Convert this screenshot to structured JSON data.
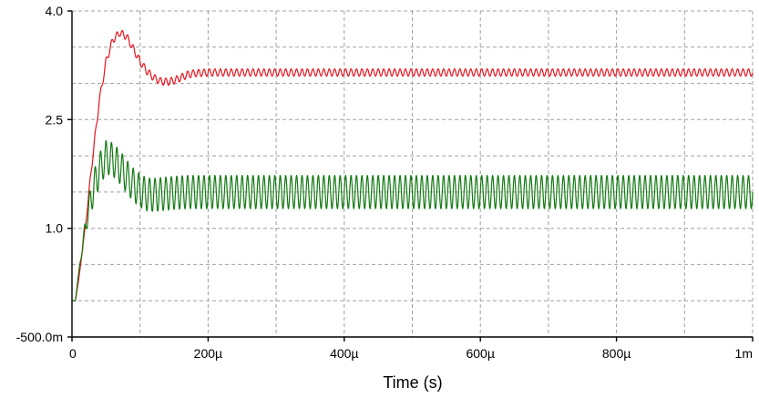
{
  "chart_data": {
    "type": "line",
    "title": "",
    "xlabel": "Time (s)",
    "ylabel": "",
    "xlim": [
      0,
      0.001
    ],
    "ylim": [
      -0.5,
      4.0
    ],
    "x_tick_values": [
      0,
      0.0002,
      0.0004,
      0.0006,
      0.0008,
      0.001
    ],
    "x_tick_labels": [
      "0",
      "200µ",
      "400µ",
      "600µ",
      "800µ",
      "1m"
    ],
    "y_tick_values": [
      -0.5,
      1.0,
      2.5,
      4.0
    ],
    "y_tick_labels": [
      "-500.0m",
      "1.0",
      "2.5",
      "4.0"
    ],
    "y_grid_step": 0.5,
    "x_grid_step": 0.0001,
    "grid": true,
    "legend": "none",
    "series": [
      {
        "color": "#e8141e",
        "x": [
          0,
          5e-06,
          1e-05,
          2e-05,
          3e-05,
          4e-05,
          5e-05,
          6e-05,
          7e-05,
          8e-05,
          9e-05,
          0.0001,
          0.00011,
          0.00012,
          0.00013,
          0.00014,
          0.00015,
          0.00016,
          0.00017,
          0.00018,
          0.0002,
          0.00025,
          0.0003,
          0.0004,
          0.0005,
          0.0006,
          0.0007,
          0.0008,
          0.0009,
          0.001
        ],
        "y": [
          0.0,
          0.0,
          0.3,
          1.05,
          1.95,
          2.75,
          3.3,
          3.6,
          3.7,
          3.65,
          3.48,
          3.3,
          3.17,
          3.08,
          3.03,
          3.02,
          3.04,
          3.08,
          3.12,
          3.14,
          3.15,
          3.15,
          3.15,
          3.15,
          3.15,
          3.15,
          3.15,
          3.15,
          3.15,
          3.15
        ],
        "ripple_amplitude": 0.05
      },
      {
        "color": "#137a13",
        "x": [
          0,
          5e-06,
          1e-05,
          2e-05,
          3e-05,
          4e-05,
          5e-05,
          6e-05,
          7e-05,
          8e-05,
          9e-05,
          0.0001,
          0.00011,
          0.00012,
          0.00013,
          0.00014,
          0.00015,
          0.00017,
          0.0002,
          0.00025,
          0.0003,
          0.0004,
          0.0005,
          0.0006,
          0.0007,
          0.0008,
          0.0009,
          0.001
        ],
        "y": [
          0.0,
          0.0,
          0.4,
          1.05,
          1.5,
          1.8,
          1.98,
          1.95,
          1.85,
          1.72,
          1.6,
          1.52,
          1.47,
          1.46,
          1.47,
          1.48,
          1.49,
          1.5,
          1.5,
          1.5,
          1.5,
          1.5,
          1.5,
          1.5,
          1.5,
          1.5,
          1.5,
          1.5
        ],
        "ripple_amplitude": 0.23
      }
    ]
  }
}
